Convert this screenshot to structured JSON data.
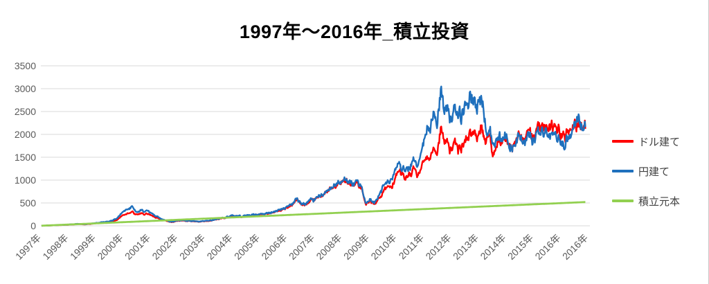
{
  "title": "1997年〜2016年_積立投資",
  "legend": {
    "items": [
      {
        "label": "ドル建て",
        "color": "#ff0000"
      },
      {
        "label": "円建て",
        "color": "#1f70bd"
      },
      {
        "label": "積立元本",
        "color": "#92d050"
      }
    ]
  },
  "colors": {
    "grid": "#d9d9d9",
    "axis_text": "#595959",
    "title_text": "#000000",
    "background": "#ffffff"
  },
  "chart_data": {
    "type": "line",
    "title": "1997年〜2016年_積立投資",
    "xlabel": "",
    "ylabel": "",
    "ylim": [
      0,
      3500
    ],
    "y_ticks": [
      0,
      500,
      1000,
      1500,
      2000,
      2500,
      3000,
      3500
    ],
    "x_tick_labels": [
      "1997年",
      "1998年",
      "1999年",
      "2000年",
      "2001年",
      "2002年",
      "2003年",
      "2004年",
      "2005年",
      "2006年",
      "2007年",
      "2008年",
      "2009年",
      "2010年",
      "2011年",
      "2012年",
      "2013年",
      "2014年",
      "2015年",
      "2016年",
      "2016年"
    ],
    "x_range_years": [
      1997.0,
      2016.9
    ],
    "grid": true,
    "legend_position": "right",
    "series": [
      {
        "name": "ドル建て",
        "color": "#ff0000",
        "points": [
          [
            1997.0,
            2
          ],
          [
            1997.5,
            12
          ],
          [
            1998.0,
            25
          ],
          [
            1998.3,
            38
          ],
          [
            1998.6,
            30
          ],
          [
            1999.0,
            55
          ],
          [
            1999.5,
            85
          ],
          [
            1999.75,
            130
          ],
          [
            2000.0,
            240
          ],
          [
            2000.3,
            310
          ],
          [
            2000.45,
            235
          ],
          [
            2000.65,
            265
          ],
          [
            2000.9,
            245
          ],
          [
            2001.1,
            200
          ],
          [
            2001.4,
            130
          ],
          [
            2001.75,
            80
          ],
          [
            2002.0,
            115
          ],
          [
            2002.4,
            105
          ],
          [
            2002.75,
            88
          ],
          [
            2003.2,
            110
          ],
          [
            2003.5,
            150
          ],
          [
            2004.0,
            218
          ],
          [
            2004.3,
            200
          ],
          [
            2004.6,
            225
          ],
          [
            2005.0,
            248
          ],
          [
            2005.5,
            292
          ],
          [
            2006.0,
            405
          ],
          [
            2006.35,
            560
          ],
          [
            2006.55,
            445
          ],
          [
            2007.0,
            560
          ],
          [
            2007.5,
            760
          ],
          [
            2007.9,
            930
          ],
          [
            2008.2,
            1020
          ],
          [
            2008.4,
            880
          ],
          [
            2008.55,
            960
          ],
          [
            2008.7,
            800
          ],
          [
            2008.85,
            450
          ],
          [
            2009.0,
            540
          ],
          [
            2009.17,
            460
          ],
          [
            2009.5,
            740
          ],
          [
            2009.8,
            900
          ],
          [
            2010.05,
            1230
          ],
          [
            2010.3,
            1020
          ],
          [
            2010.6,
            1230
          ],
          [
            2010.75,
            1100
          ],
          [
            2011.0,
            1400
          ],
          [
            2011.3,
            1700
          ],
          [
            2011.45,
            1580
          ],
          [
            2011.62,
            2150
          ],
          [
            2011.72,
            1750
          ],
          [
            2011.85,
            1950
          ],
          [
            2011.95,
            1620
          ],
          [
            2012.1,
            1800
          ],
          [
            2012.3,
            1650
          ],
          [
            2012.5,
            1900
          ],
          [
            2012.7,
            2050
          ],
          [
            2012.85,
            1950
          ],
          [
            2013.05,
            2130
          ],
          [
            2013.25,
            1850
          ],
          [
            2013.4,
            2000
          ],
          [
            2013.5,
            1400
          ],
          [
            2013.65,
            1780
          ],
          [
            2014.0,
            1850
          ],
          [
            2014.2,
            1790
          ],
          [
            2014.45,
            1960
          ],
          [
            2014.65,
            1880
          ],
          [
            2015.0,
            2060
          ],
          [
            2015.3,
            2160
          ],
          [
            2015.55,
            2080
          ],
          [
            2015.75,
            2200
          ],
          [
            2015.95,
            1980
          ],
          [
            2016.1,
            1950
          ],
          [
            2016.35,
            2070
          ],
          [
            2016.6,
            2260
          ],
          [
            2016.75,
            2180
          ],
          [
            2016.9,
            2150
          ]
        ]
      },
      {
        "name": "円建て",
        "color": "#1f70bd",
        "points": [
          [
            1997.0,
            2
          ],
          [
            1997.5,
            14
          ],
          [
            1998.0,
            28
          ],
          [
            1998.3,
            42
          ],
          [
            1998.6,
            34
          ],
          [
            1999.0,
            62
          ],
          [
            1999.5,
            100
          ],
          [
            1999.75,
            160
          ],
          [
            2000.0,
            320
          ],
          [
            2000.3,
            430
          ],
          [
            2000.45,
            290
          ],
          [
            2000.65,
            335
          ],
          [
            2000.9,
            305
          ],
          [
            2001.1,
            250
          ],
          [
            2001.4,
            145
          ],
          [
            2001.75,
            85
          ],
          [
            2002.0,
            122
          ],
          [
            2002.4,
            110
          ],
          [
            2002.75,
            92
          ],
          [
            2003.2,
            115
          ],
          [
            2003.5,
            158
          ],
          [
            2004.0,
            228
          ],
          [
            2004.3,
            210
          ],
          [
            2004.6,
            232
          ],
          [
            2005.0,
            256
          ],
          [
            2005.5,
            300
          ],
          [
            2006.0,
            425
          ],
          [
            2006.35,
            590
          ],
          [
            2006.55,
            462
          ],
          [
            2007.0,
            578
          ],
          [
            2007.5,
            780
          ],
          [
            2007.9,
            950
          ],
          [
            2008.2,
            1045
          ],
          [
            2008.4,
            900
          ],
          [
            2008.55,
            985
          ],
          [
            2008.7,
            820
          ],
          [
            2008.85,
            470
          ],
          [
            2009.0,
            565
          ],
          [
            2009.17,
            485
          ],
          [
            2009.5,
            850
          ],
          [
            2009.8,
            1040
          ],
          [
            2010.05,
            1390
          ],
          [
            2010.3,
            1150
          ],
          [
            2010.6,
            1450
          ],
          [
            2010.75,
            1290
          ],
          [
            2011.0,
            1900
          ],
          [
            2011.3,
            2400
          ],
          [
            2011.45,
            2200
          ],
          [
            2011.62,
            3010
          ],
          [
            2011.72,
            2450
          ],
          [
            2011.85,
            2760
          ],
          [
            2011.95,
            2300
          ],
          [
            2012.1,
            2520
          ],
          [
            2012.3,
            2350
          ],
          [
            2012.5,
            2620
          ],
          [
            2012.7,
            2820
          ],
          [
            2012.85,
            2650
          ],
          [
            2013.05,
            2740
          ],
          [
            2013.2,
            2450
          ],
          [
            2013.3,
            1950
          ],
          [
            2013.4,
            2100
          ],
          [
            2013.5,
            1720
          ],
          [
            2013.65,
            1880
          ],
          [
            2014.0,
            1900
          ],
          [
            2014.2,
            1760
          ],
          [
            2014.45,
            1900
          ],
          [
            2014.65,
            1810
          ],
          [
            2015.0,
            1960
          ],
          [
            2015.3,
            2040
          ],
          [
            2015.55,
            1960
          ],
          [
            2015.75,
            2060
          ],
          [
            2015.95,
            1820
          ],
          [
            2016.1,
            1760
          ],
          [
            2016.35,
            1950
          ],
          [
            2016.6,
            2430
          ],
          [
            2016.75,
            2250
          ],
          [
            2016.9,
            2090
          ]
        ]
      },
      {
        "name": "積立元本",
        "color": "#92d050",
        "points": [
          [
            1997.0,
            2
          ],
          [
            2016.9,
            520
          ]
        ]
      }
    ]
  }
}
